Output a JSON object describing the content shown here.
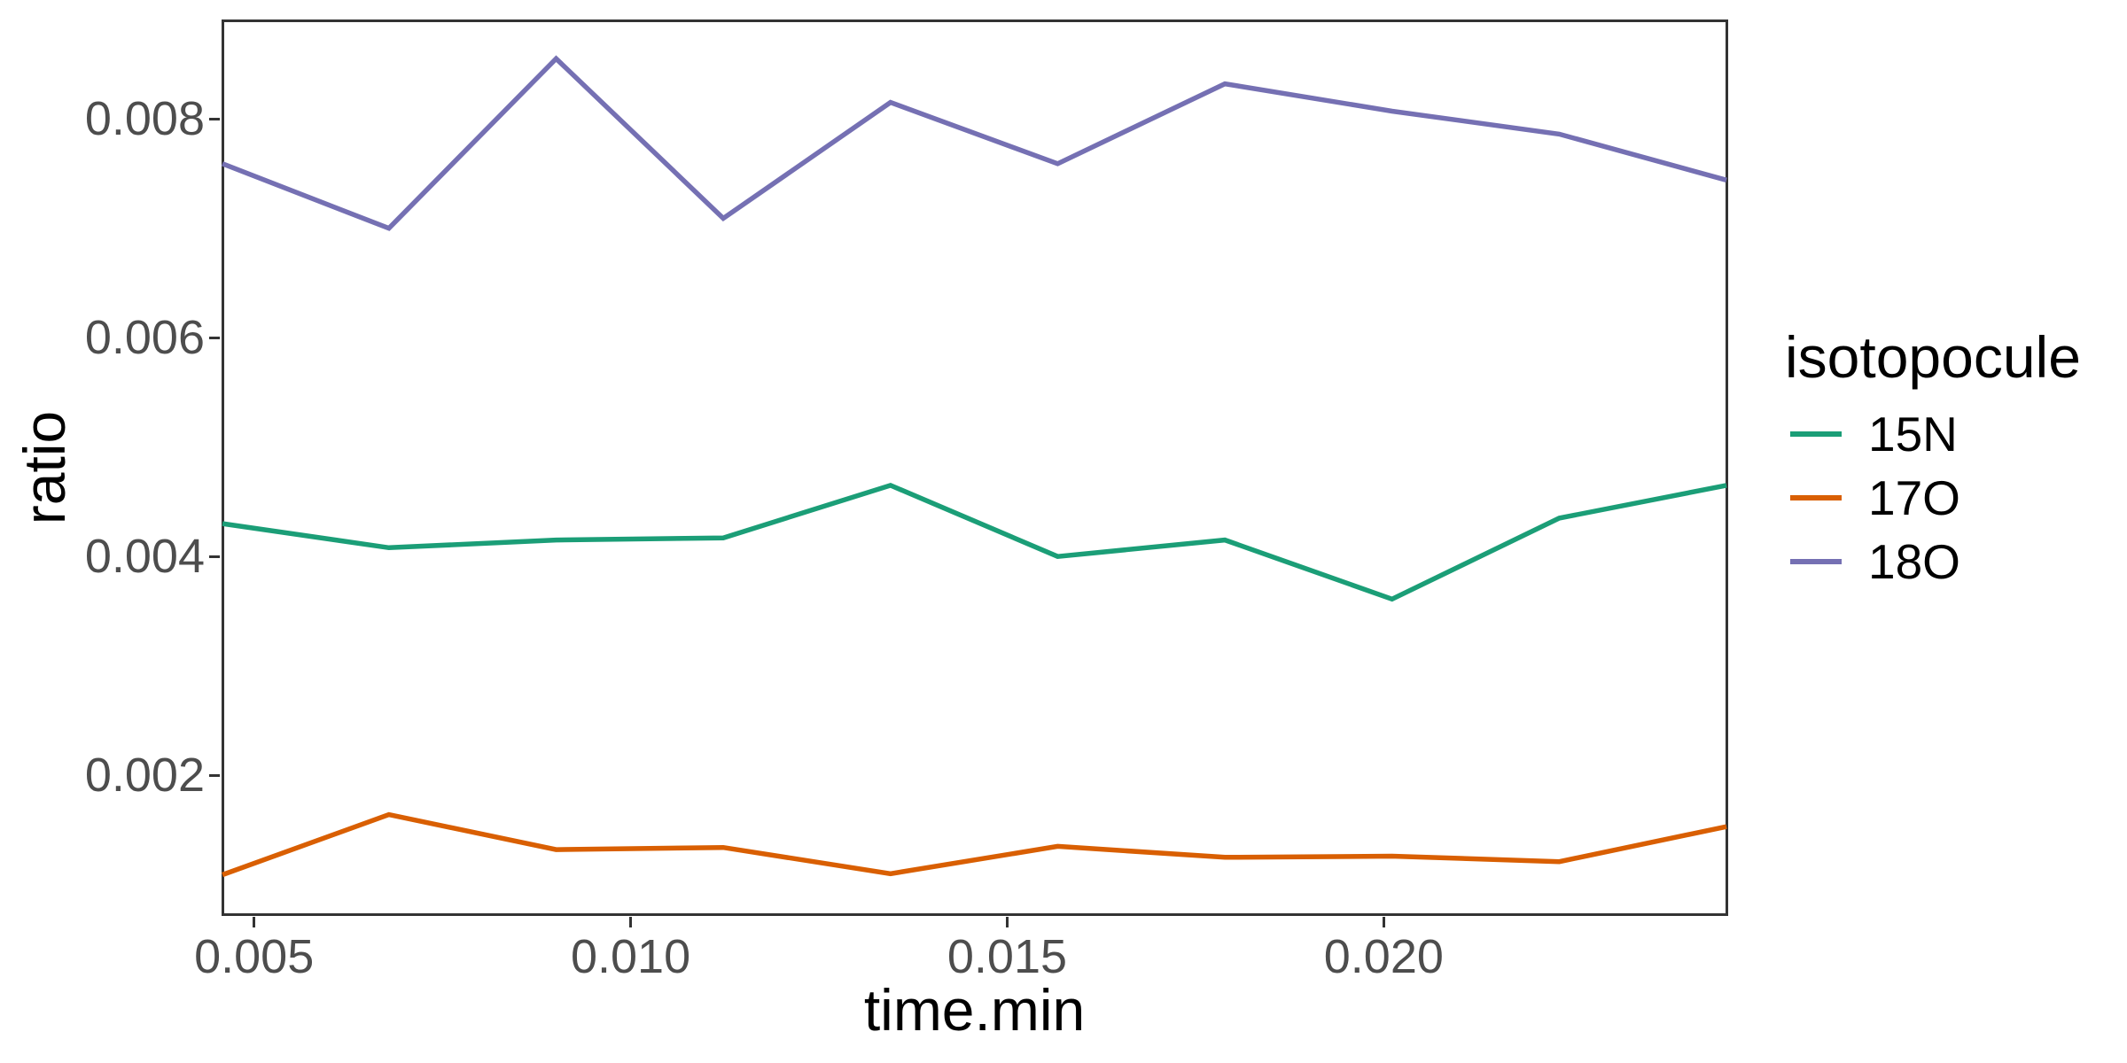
{
  "chart_data": {
    "type": "line",
    "title": "",
    "xlabel": "time.min",
    "ylabel": "ratio",
    "x": [
      0.00458,
      0.00679,
      0.00901,
      0.01123,
      0.01345,
      0.01567,
      0.01789,
      0.02011,
      0.02233,
      0.02455
    ],
    "series": [
      {
        "name": "15N",
        "color": "#1B9E77",
        "values": [
          0.0043,
          0.00408,
          0.00415,
          0.00417,
          0.00465,
          0.004,
          0.00415,
          0.00361,
          0.00435,
          0.00465
        ]
      },
      {
        "name": "17O",
        "color": "#D95F02",
        "values": [
          0.00109,
          0.00164,
          0.00132,
          0.00134,
          0.0011,
          0.00135,
          0.00125,
          0.00126,
          0.00121,
          0.00153
        ]
      },
      {
        "name": "18O",
        "color": "#7570B3",
        "values": [
          0.00759,
          0.007,
          0.00855,
          0.00709,
          0.00815,
          0.00759,
          0.00832,
          0.00807,
          0.00786,
          0.00744
        ]
      }
    ],
    "x_ticks": {
      "values": [
        0.005,
        0.01,
        0.015,
        0.02
      ],
      "labels": [
        "0.005",
        "0.010",
        "0.015",
        "0.020"
      ]
    },
    "y_ticks": {
      "values": [
        0.002,
        0.004,
        0.006,
        0.008
      ],
      "labels": [
        "0.002",
        "0.004",
        "0.006",
        "0.008"
      ]
    },
    "x_domain": [
      0.00458,
      0.02455
    ],
    "y_domain": [
      0.00073,
      0.0089
    ],
    "grid": false,
    "legend": {
      "title": "isotopocule",
      "position": "right",
      "entries": [
        "15N",
        "17O",
        "18O"
      ]
    }
  },
  "styles": {
    "panel_border_color": "#333333",
    "tick_color": "#333333",
    "tick_label_color": "#4D4D4D",
    "axis_title_color": "#000000",
    "background": "#ffffff",
    "line_width": 5.5
  }
}
